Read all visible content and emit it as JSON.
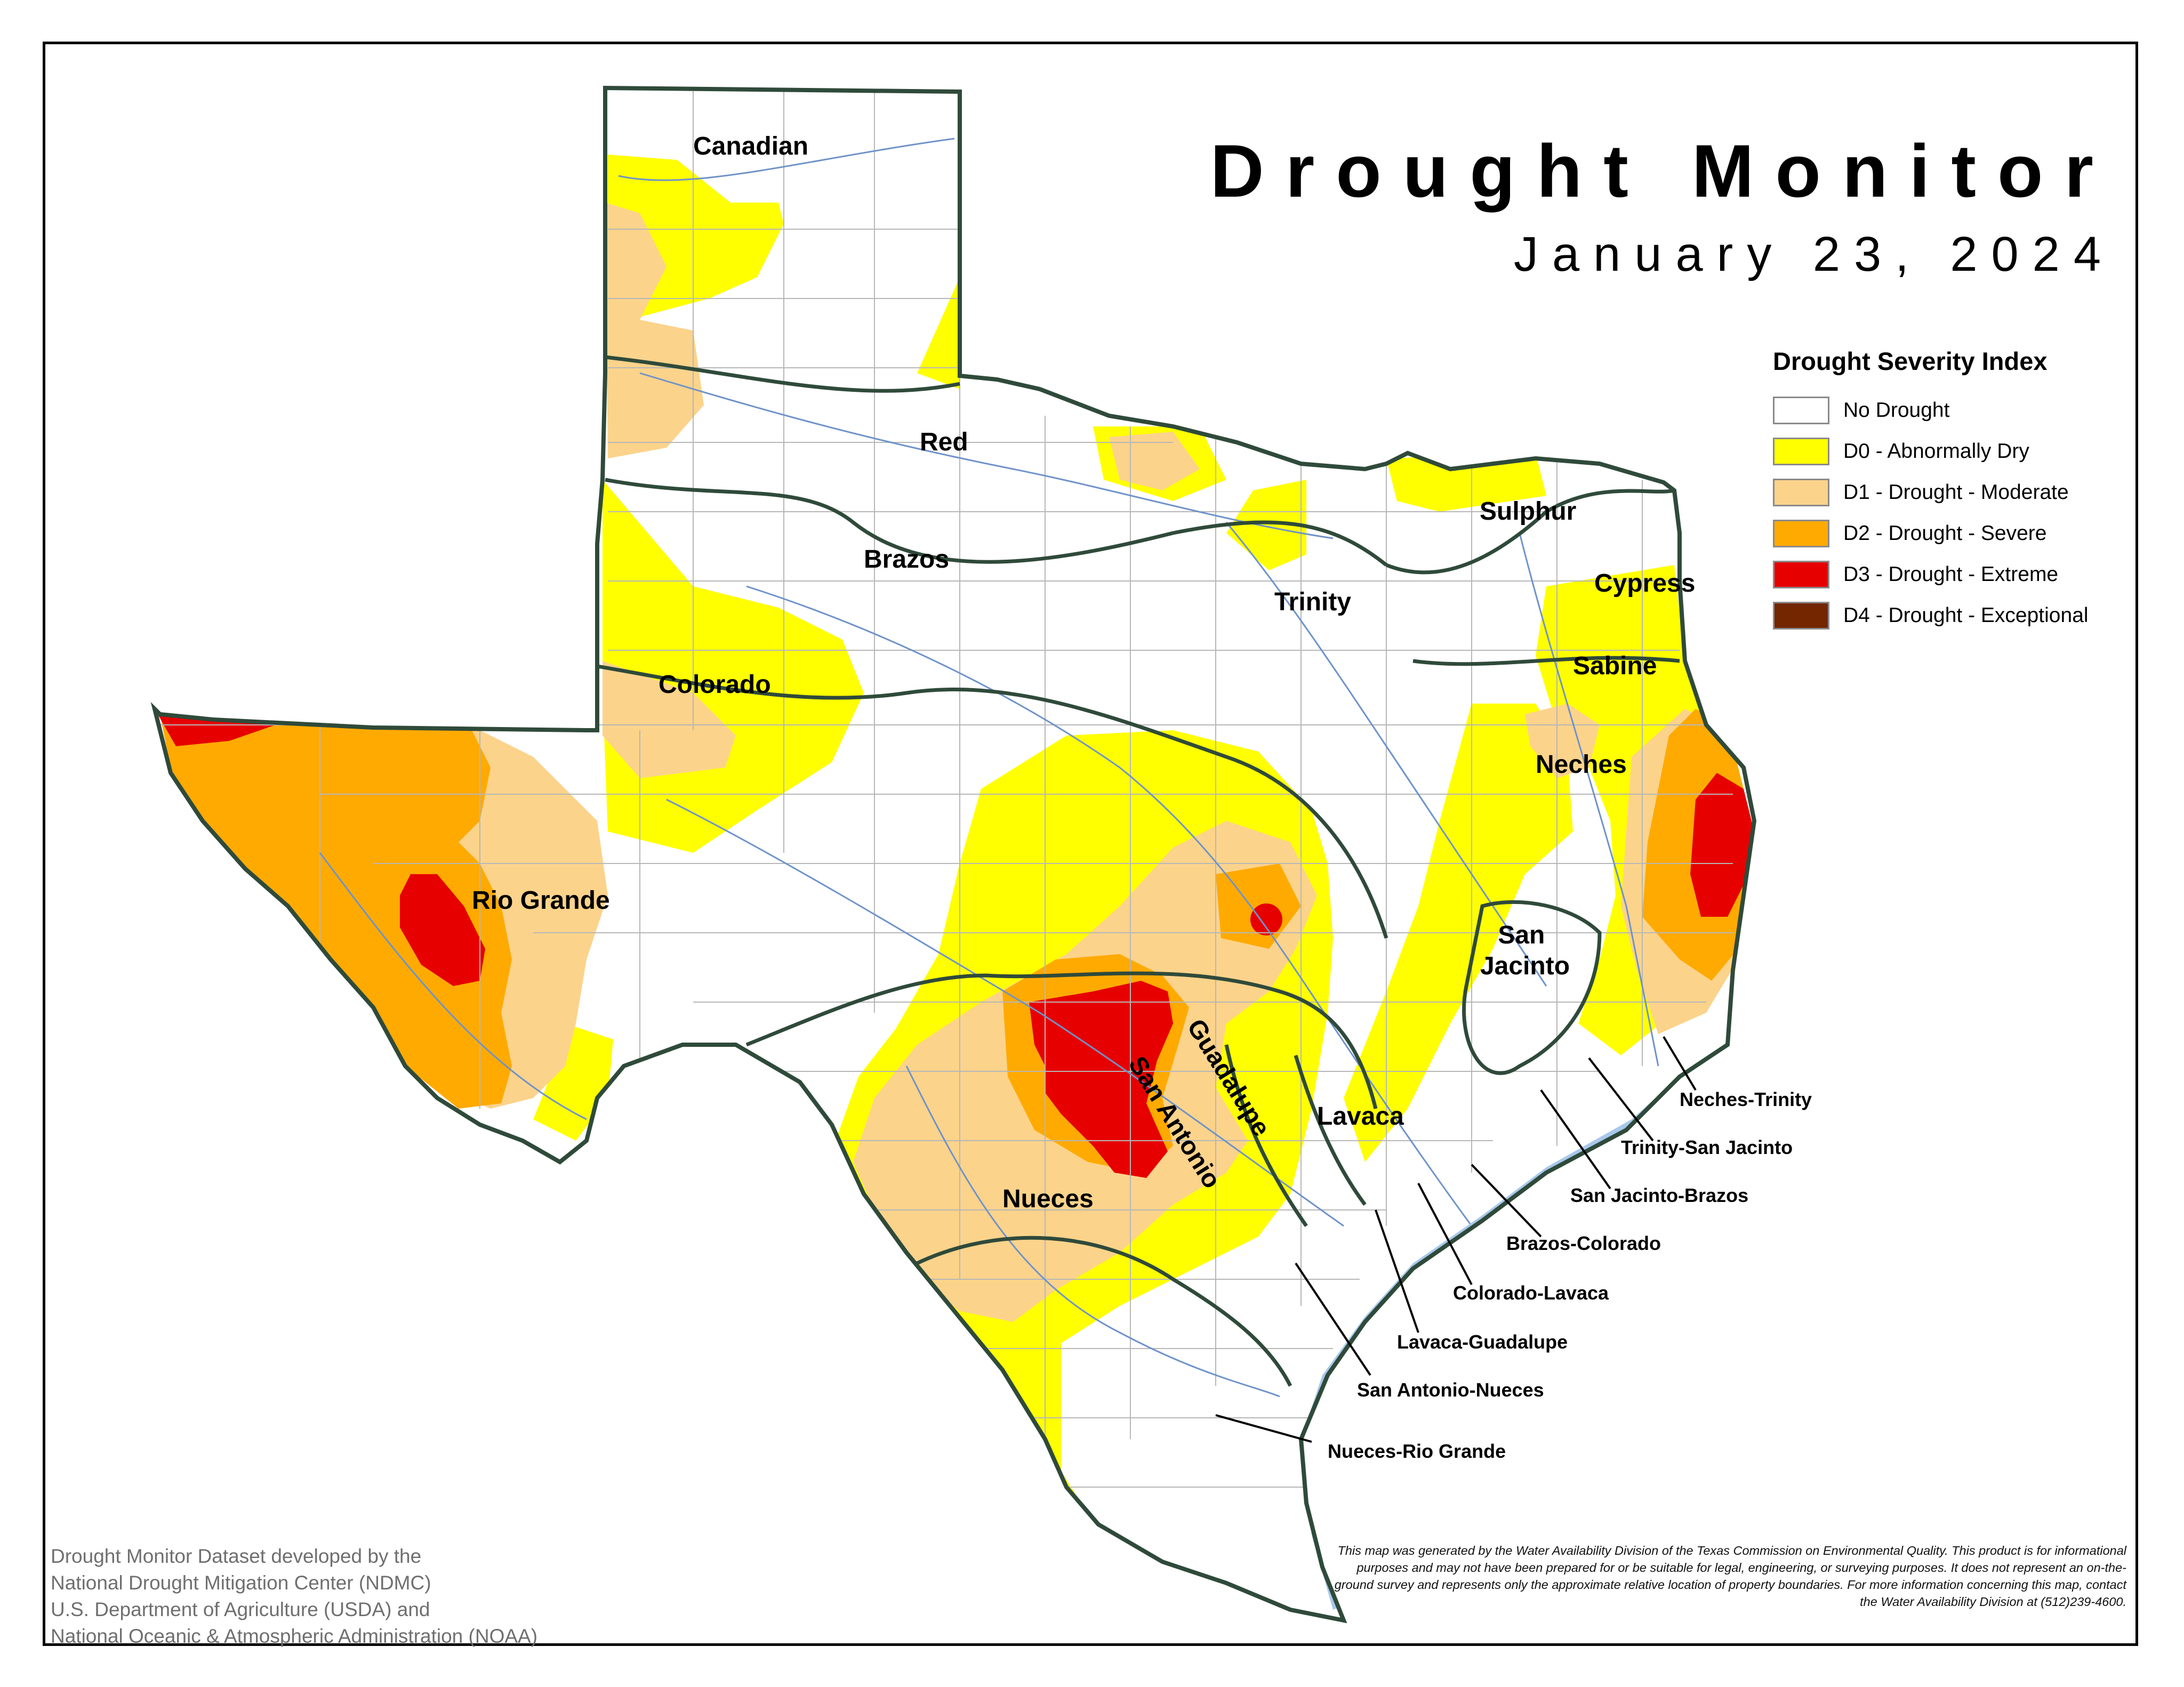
{
  "title": "Drought Monitor",
  "date": "January 23, 2024",
  "legend": {
    "title": "Drought Severity Index",
    "items": [
      {
        "label": "No Drought",
        "color": "#ffffff"
      },
      {
        "label": "D0 - Abnormally Dry",
        "color": "#ffff00"
      },
      {
        "label": "D1 - Drought - Moderate",
        "color": "#fcd38b"
      },
      {
        "label": "D2 - Drought - Severe",
        "color": "#ffaa00"
      },
      {
        "label": "D3 - Drought - Extreme",
        "color": "#e60000"
      },
      {
        "label": "D4 - Drought - Exceptional",
        "color": "#732600"
      }
    ]
  },
  "basins": [
    "Canadian",
    "Red",
    "Brazos",
    "Colorado",
    "Rio Grande",
    "Trinity",
    "Sulphur",
    "Cypress",
    "Sabine",
    "Neches",
    "San Jacinto",
    "Lavaca",
    "Guadalupe",
    "San Antonio",
    "Nueces"
  ],
  "coastal_basins": [
    "Neches-Trinity",
    "Trinity-San Jacinto",
    "San Jacinto-Brazos",
    "Brazos-Colorado",
    "Colorado-Lavaca",
    "Lavaca-Guadalupe",
    "San Antonio-Nueces",
    "Nueces-Rio Grande"
  ],
  "credit": [
    "Drought Monitor Dataset developed by the",
    "National Drought Mitigation Center (NDMC)",
    "U.S. Department of Agriculture (USDA) and",
    "National Oceanic & Atmospheric Administration (NOAA)"
  ],
  "disclaimer": "This map was generated by the Water Availability Division of the Texas Commission on Environmental Quality. This product is for informational purposes and may not have been prepared for or be suitable for legal, engineering, or surveying purposes. It does not represent an on-the-ground survey and represents only the approximate relative location of property boundaries. For more information concerning this map, contact the Water Availability Division at (512)239-4600.",
  "colors": {
    "water": "#a8c8ea",
    "river": "#6f93c9",
    "basin_line": "#2f4a3a",
    "county_line": "#b7b7b7"
  }
}
